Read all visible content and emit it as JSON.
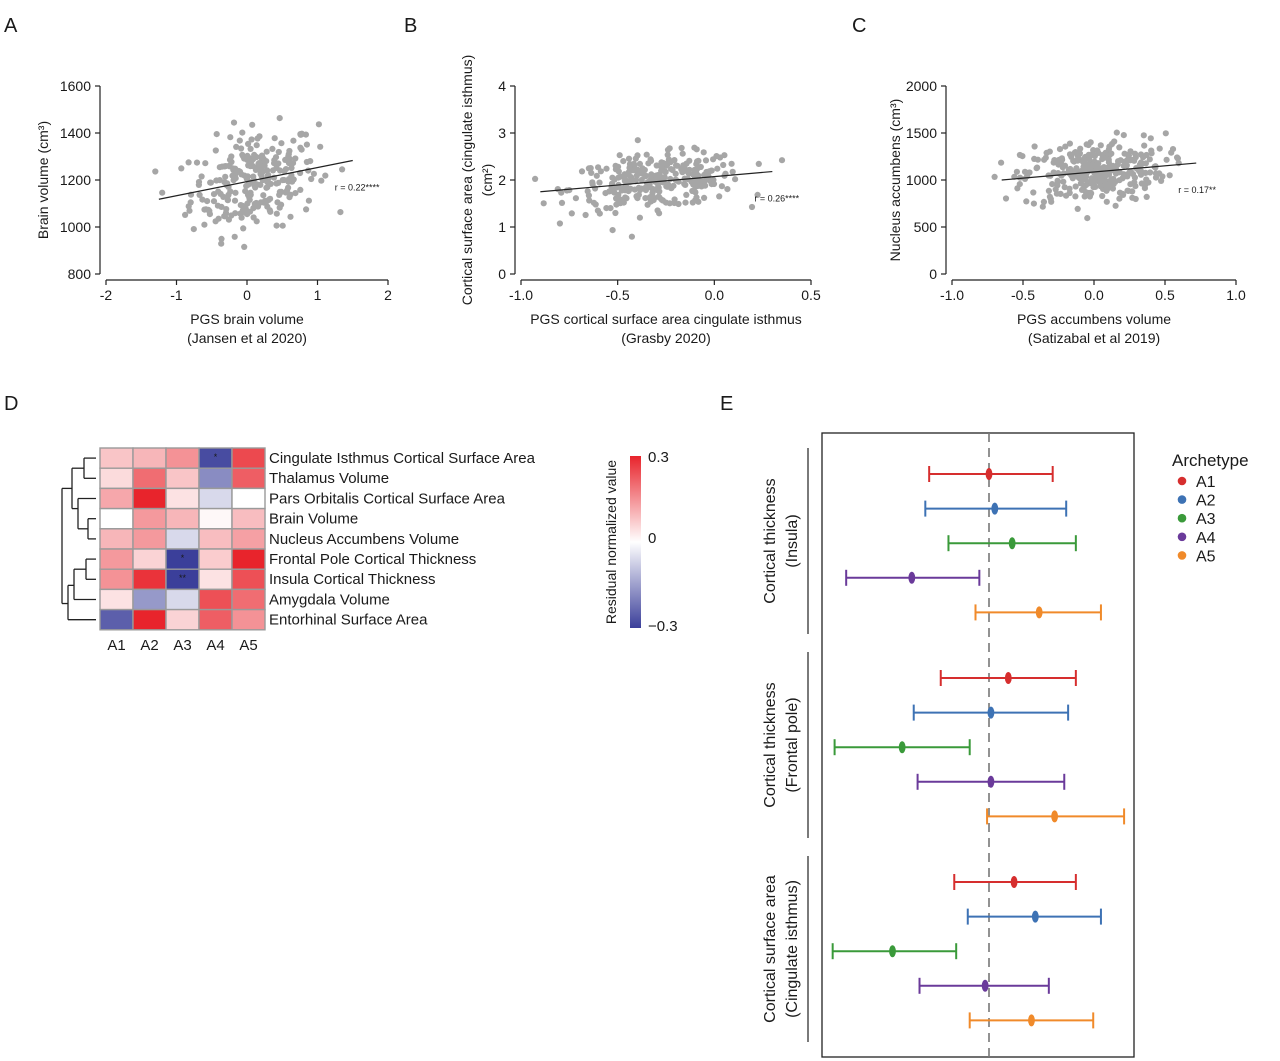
{
  "panel_letters": [
    "A",
    "B",
    "C",
    "D",
    "E"
  ],
  "chart_data": [
    {
      "panel": "A",
      "type": "scatter",
      "xlabel": "PGS brain volume",
      "xlabel2": "(Jansen et al 2020)",
      "ylabel": "Brain volume (cm³)",
      "xlim": [
        -2,
        2
      ],
      "ylim": [
        800,
        1600
      ],
      "xticks": [
        "-2",
        "-1",
        "0",
        "1",
        "2"
      ],
      "yticks": [
        "800",
        "1000",
        "1200",
        "1400",
        "1600"
      ],
      "annotation": "r = 0.22****",
      "trend_line": {
        "x": [
          -1.25,
          1.5
        ],
        "y": [
          1118,
          1283
        ]
      },
      "point_color": "#a6a6a6"
    },
    {
      "panel": "B",
      "type": "scatter",
      "xlabel": "PGS cortical surface area cingulate isthmus",
      "xlabel2": "(Grasby 2020)",
      "ylabel": "Cortical surface area (cingulate isthmus)",
      "ylabel2": "(cm²)",
      "xlim": [
        -1.0,
        0.5
      ],
      "ylim": [
        0,
        4
      ],
      "xticks": [
        "-1.0",
        "-0.5",
        "0.0",
        "0.5"
      ],
      "yticks": [
        "0",
        "1",
        "2",
        "3",
        "4"
      ],
      "annotation": "r = 0.26****",
      "trend_line": {
        "x": [
          -0.9,
          0.3
        ],
        "y": [
          1.75,
          2.18
        ]
      },
      "point_color": "#a6a6a6"
    },
    {
      "panel": "C",
      "type": "scatter",
      "xlabel": "PGS accumbens volume",
      "xlabel2": "(Satizabal et al 2019)",
      "ylabel": "Nucleus accumbens (cm³)",
      "xlim": [
        -1.0,
        1.0
      ],
      "ylim": [
        0,
        2000
      ],
      "xticks": [
        "-1.0",
        "-0.5",
        "0.0",
        "0.5",
        "1.0"
      ],
      "yticks": [
        "0",
        "500",
        "1000",
        "1500",
        "2000"
      ],
      "annotation": "r = 0.17**",
      "trend_line": {
        "x": [
          -0.65,
          0.72
        ],
        "y": [
          1000,
          1180
        ]
      },
      "point_color": "#a6a6a6"
    },
    {
      "panel": "D",
      "type": "heatmap",
      "columns": [
        "A1",
        "A2",
        "A3",
        "A4",
        "A5"
      ],
      "rows": [
        "Cingulate Isthmus Cortical Surface Area",
        "Thalamus Volume",
        "Pars Orbitalis Cortical Surface Area",
        "Brain Volume",
        "Nucleus Accumbens Volume",
        "Frontal Pole Cortical Thickness",
        "Insula Cortical Thickness",
        "Amygdala Volume",
        "Entorhinal Surface Area"
      ],
      "values": [
        [
          0.08,
          0.1,
          0.15,
          -0.28,
          0.25
        ],
        [
          0.05,
          0.2,
          0.08,
          -0.18,
          0.22
        ],
        [
          0.12,
          0.3,
          0.04,
          -0.06,
          0.0
        ],
        [
          0.0,
          0.14,
          0.1,
          0.01,
          0.09
        ],
        [
          0.1,
          0.14,
          -0.06,
          0.09,
          0.13
        ],
        [
          0.14,
          0.06,
          -0.3,
          0.07,
          0.3
        ],
        [
          0.15,
          0.28,
          -0.3,
          0.04,
          0.24
        ],
        [
          0.04,
          -0.16,
          -0.06,
          0.24,
          0.2
        ],
        [
          -0.25,
          0.3,
          0.06,
          0.22,
          0.15
        ]
      ],
      "stars": [
        {
          "row": 0,
          "col": 3,
          "text": "*"
        },
        {
          "row": 5,
          "col": 2,
          "text": "*"
        },
        {
          "row": 6,
          "col": 2,
          "text": "**"
        }
      ],
      "colorbar_title": "Residual normalized value",
      "colorbar_ticks": [
        "0.3",
        "0",
        "−0.3"
      ],
      "vmin": -0.3,
      "vmax": 0.3,
      "color_low": "#3b3f9a",
      "color_mid": "#ffffff",
      "color_high": "#e8242c"
    },
    {
      "panel": "E",
      "type": "forest",
      "legend_title": "Archetype",
      "series": [
        {
          "name": "A1",
          "color": "#d62e2e"
        },
        {
          "name": "A2",
          "color": "#3d72b4"
        },
        {
          "name": "A3",
          "color": "#3a9a3a"
        },
        {
          "name": "A4",
          "color": "#6a3a9a"
        },
        {
          "name": "A5",
          "color": "#f08a2a"
        }
      ],
      "xlim": [
        -1,
        1
      ],
      "groups": [
        {
          "label": "Cortical thickness",
          "label2": "(Insula)",
          "est": [
            0.0,
            0.03,
            0.12,
            -0.4,
            0.26
          ],
          "low": [
            -0.31,
            -0.33,
            -0.21,
            -0.74,
            -0.07
          ],
          "high": [
            0.33,
            0.4,
            0.45,
            -0.05,
            0.58
          ]
        },
        {
          "label": "Cortical thickness",
          "label2": "(Frontal pole)",
          "est": [
            0.1,
            0.01,
            -0.45,
            0.01,
            0.34
          ],
          "low": [
            -0.25,
            -0.39,
            -0.8,
            -0.37,
            -0.01
          ],
          "high": [
            0.45,
            0.41,
            -0.1,
            0.39,
            0.7
          ]
        },
        {
          "label": "Cortical surface area",
          "label2": "(Cingulate isthmus)",
          "est": [
            0.13,
            0.24,
            -0.5,
            -0.02,
            0.22
          ],
          "low": [
            -0.18,
            -0.11,
            -0.81,
            -0.36,
            -0.1
          ],
          "high": [
            0.45,
            0.58,
            -0.17,
            0.31,
            0.54
          ]
        }
      ]
    }
  ]
}
